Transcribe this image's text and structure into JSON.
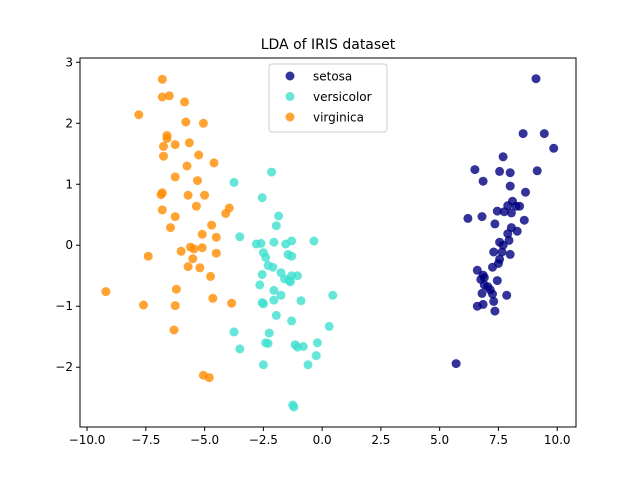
{
  "chart_data": {
    "type": "scatter",
    "title": "LDA of IRIS dataset",
    "xlabel": "",
    "ylabel": "",
    "xlim": [
      -10.3,
      10.8
    ],
    "ylim": [
      -2.98,
      3.07
    ],
    "xticks": [
      -10.0,
      -7.5,
      -5.0,
      -2.5,
      0.0,
      2.5,
      5.0,
      7.5,
      10.0
    ],
    "xtick_labels": [
      "−10.0",
      "−7.5",
      "−5.0",
      "−2.5",
      "0.0",
      "2.5",
      "5.0",
      "7.5",
      "10.0"
    ],
    "yticks": [
      -2,
      -1,
      0,
      1,
      2,
      3
    ],
    "ytick_labels": [
      "−2",
      "−1",
      "0",
      "1",
      "2",
      "3"
    ],
    "grid": false,
    "legend_position": "top-center",
    "series": [
      {
        "name": "setosa",
        "color": "#000080",
        "points": [
          [
            9.1,
            2.73
          ],
          [
            8.55,
            1.83
          ],
          [
            9.45,
            1.83
          ],
          [
            9.85,
            1.59
          ],
          [
            7.7,
            1.45
          ],
          [
            6.5,
            1.24
          ],
          [
            7.55,
            1.21
          ],
          [
            8.0,
            1.19
          ],
          [
            9.15,
            1.22
          ],
          [
            6.85,
            1.05
          ],
          [
            8.0,
            0.97
          ],
          [
            8.65,
            0.87
          ],
          [
            7.9,
            0.65
          ],
          [
            8.1,
            0.72
          ],
          [
            8.25,
            0.64
          ],
          [
            8.4,
            0.64
          ],
          [
            7.45,
            0.56
          ],
          [
            7.75,
            0.55
          ],
          [
            8.05,
            0.53
          ],
          [
            6.2,
            0.44
          ],
          [
            6.8,
            0.47
          ],
          [
            7.35,
            0.35
          ],
          [
            8.6,
            0.41
          ],
          [
            8.05,
            0.29
          ],
          [
            7.9,
            0.19
          ],
          [
            8.3,
            0.23
          ],
          [
            7.95,
            0.08
          ],
          [
            7.55,
            0.05
          ],
          [
            7.7,
            0.0
          ],
          [
            7.3,
            -0.11
          ],
          [
            7.65,
            -0.11
          ],
          [
            8.0,
            -0.15
          ],
          [
            7.55,
            -0.23
          ],
          [
            7.5,
            -0.3
          ],
          [
            7.25,
            -0.36
          ],
          [
            6.6,
            -0.41
          ],
          [
            6.85,
            -0.49
          ],
          [
            6.9,
            -0.53
          ],
          [
            6.75,
            -0.56
          ],
          [
            7.45,
            -0.58
          ],
          [
            6.9,
            -0.65
          ],
          [
            7.05,
            -0.68
          ],
          [
            7.15,
            -0.73
          ],
          [
            6.8,
            -0.79
          ],
          [
            7.25,
            -0.8
          ],
          [
            7.85,
            -0.82
          ],
          [
            6.85,
            -0.97
          ],
          [
            7.3,
            -0.92
          ],
          [
            6.6,
            -1.0
          ],
          [
            7.35,
            -1.08
          ],
          [
            5.7,
            -1.94
          ]
        ]
      },
      {
        "name": "versicolor",
        "color": "#40E0D0",
        "points": [
          [
            -2.15,
            1.2
          ],
          [
            -3.75,
            1.03
          ],
          [
            -2.55,
            0.78
          ],
          [
            -1.85,
            0.48
          ],
          [
            -1.95,
            0.32
          ],
          [
            -3.5,
            0.14
          ],
          [
            -2.8,
            0.02
          ],
          [
            -2.6,
            0.03
          ],
          [
            -2.05,
            0.05
          ],
          [
            -1.3,
            0.07
          ],
          [
            -1.55,
            0.02
          ],
          [
            -0.35,
            0.07
          ],
          [
            -2.5,
            -0.12
          ],
          [
            -2.4,
            -0.2
          ],
          [
            -1.45,
            -0.15
          ],
          [
            -1.3,
            -0.18
          ],
          [
            -2.3,
            -0.33
          ],
          [
            -2.1,
            -0.36
          ],
          [
            -1.75,
            -0.45
          ],
          [
            -2.55,
            -0.48
          ],
          [
            -1.6,
            -0.55
          ],
          [
            -1.3,
            -0.5
          ],
          [
            -1.05,
            -0.5
          ],
          [
            -1.4,
            -0.58
          ],
          [
            -1.35,
            -0.6
          ],
          [
            -2.65,
            -0.65
          ],
          [
            -2.05,
            -0.74
          ],
          [
            -1.75,
            -0.82
          ],
          [
            0.45,
            -0.82
          ],
          [
            -2.55,
            -0.94
          ],
          [
            -2.5,
            -0.96
          ],
          [
            -2.05,
            -0.9
          ],
          [
            -0.9,
            -0.91
          ],
          [
            -1.95,
            -1.15
          ],
          [
            -1.3,
            -1.24
          ],
          [
            0.3,
            -1.33
          ],
          [
            -3.75,
            -1.42
          ],
          [
            -2.25,
            -1.44
          ],
          [
            -2.4,
            -1.6
          ],
          [
            -2.3,
            -1.61
          ],
          [
            -1.15,
            -1.63
          ],
          [
            -0.2,
            -1.6
          ],
          [
            -1.05,
            -1.67
          ],
          [
            -0.8,
            -1.66
          ],
          [
            -3.5,
            -1.7
          ],
          [
            -0.25,
            -1.81
          ],
          [
            -0.6,
            -1.96
          ],
          [
            -2.5,
            -1.96
          ],
          [
            -1.25,
            -2.62
          ],
          [
            -1.2,
            -2.65
          ]
        ]
      },
      {
        "name": "virginica",
        "color": "#FF8C00",
        "points": [
          [
            -6.8,
            2.72
          ],
          [
            -6.8,
            2.43
          ],
          [
            -6.5,
            2.45
          ],
          [
            -5.85,
            2.35
          ],
          [
            -7.8,
            2.14
          ],
          [
            -5.8,
            2.02
          ],
          [
            -5.05,
            2.0
          ],
          [
            -6.6,
            1.8
          ],
          [
            -6.6,
            1.75
          ],
          [
            -6.25,
            1.65
          ],
          [
            -5.65,
            1.68
          ],
          [
            -6.75,
            1.62
          ],
          [
            -5.25,
            1.48
          ],
          [
            -6.75,
            1.46
          ],
          [
            -4.6,
            1.35
          ],
          [
            -5.75,
            1.3
          ],
          [
            -6.25,
            1.12
          ],
          [
            -5.3,
            1.06
          ],
          [
            -6.8,
            0.86
          ],
          [
            -6.85,
            0.83
          ],
          [
            -5.7,
            0.82
          ],
          [
            -5.0,
            0.82
          ],
          [
            -5.35,
            0.64
          ],
          [
            -3.95,
            0.61
          ],
          [
            -4.1,
            0.52
          ],
          [
            -6.8,
            0.58
          ],
          [
            -6.25,
            0.47
          ],
          [
            -4.7,
            0.33
          ],
          [
            -6.45,
            0.29
          ],
          [
            -5.1,
            0.18
          ],
          [
            -4.5,
            0.13
          ],
          [
            -5.6,
            -0.03
          ],
          [
            -5.45,
            -0.06
          ],
          [
            -5.1,
            -0.04
          ],
          [
            -6.0,
            -0.1
          ],
          [
            -4.5,
            -0.13
          ],
          [
            -7.4,
            -0.18
          ],
          [
            -5.5,
            -0.22
          ],
          [
            -5.7,
            -0.35
          ],
          [
            -5.2,
            -0.37
          ],
          [
            -4.75,
            -0.51
          ],
          [
            -6.2,
            -0.72
          ],
          [
            -9.2,
            -0.76
          ],
          [
            -4.65,
            -0.87
          ],
          [
            -3.85,
            -0.95
          ],
          [
            -7.6,
            -0.98
          ],
          [
            -6.25,
            -0.99
          ],
          [
            -6.3,
            -1.39
          ],
          [
            -5.05,
            -2.13
          ],
          [
            -4.8,
            -2.17
          ]
        ]
      }
    ]
  }
}
